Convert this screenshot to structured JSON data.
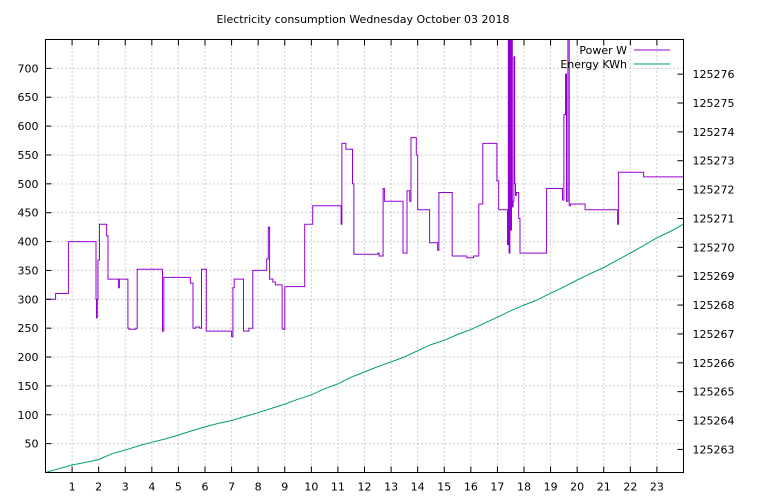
{
  "chart_data": {
    "type": "line",
    "title": "Electricity consumption Wednesday October 03 2018",
    "xlabel": "",
    "ylabel": "",
    "y2label": "",
    "xlim": [
      0,
      24
    ],
    "ylim": [
      0,
      750
    ],
    "y2lim": [
      125262.2,
      125277.2
    ],
    "x_ticks": [
      1,
      2,
      3,
      4,
      5,
      6,
      7,
      8,
      9,
      10,
      11,
      12,
      13,
      14,
      15,
      16,
      17,
      18,
      19,
      20,
      21,
      22,
      23
    ],
    "y_ticks": [
      50,
      100,
      150,
      200,
      250,
      300,
      350,
      400,
      450,
      500,
      550,
      600,
      650,
      700
    ],
    "y2_ticks": [
      125263,
      125264,
      125265,
      125266,
      125267,
      125268,
      125269,
      125270,
      125271,
      125272,
      125273,
      125274,
      125275,
      125276
    ],
    "grid": true,
    "legend": "top-right",
    "series": [
      {
        "name": "Power W",
        "axis": "left",
        "color": "#9400d3",
        "step": true,
        "x": [
          0,
          0.38,
          0.86,
          1.9,
          1.92,
          1.95,
          1.97,
          2.03,
          2.3,
          2.35,
          2.75,
          2.78,
          3.1,
          3.15,
          3.4,
          3.45,
          3.5,
          4.4,
          4.45,
          5.3,
          5.45,
          5.5,
          5.55,
          5.65,
          5.8,
          5.87,
          5.95,
          6.05,
          6.97,
          7.0,
          7.05,
          7.1,
          7.35,
          7.45,
          7.6,
          7.65,
          7.8,
          8.3,
          8.32,
          8.38,
          8.43,
          8.55,
          8.65,
          8.9,
          8.93,
          9.0,
          9.1,
          9.75,
          10.05,
          11.1,
          11.12,
          11.15,
          11.3,
          11.55,
          11.6,
          12.5,
          12.55,
          12.7,
          12.75,
          13.45,
          13.5,
          13.55,
          13.6,
          13.7,
          13.75,
          13.85,
          13.95,
          14.0,
          14.4,
          14.45,
          14.72,
          14.75,
          14.8,
          14.85,
          15.3,
          15.35,
          15.85,
          16.1,
          16.3,
          16.45,
          16.98,
          17.05,
          17.35,
          17.38,
          17.41,
          17.44,
          17.47,
          17.5,
          17.53,
          17.56,
          17.59,
          17.62,
          17.65,
          17.68,
          17.71,
          17.74,
          17.8,
          17.85,
          18.2,
          18.85,
          19.45,
          19.5,
          19.56,
          19.6,
          19.65,
          19.7,
          19.75,
          19.8,
          20.3,
          21.5,
          21.52,
          21.55,
          22.4,
          22.5,
          23.5,
          24
        ],
        "values": [
          300,
          310,
          400,
          300,
          268,
          300,
          368,
          430,
          410,
          335,
          320,
          335,
          250,
          248,
          250,
          352,
          352,
          245,
          338,
          338,
          328,
          328,
          250,
          252,
          250,
          352,
          352,
          245,
          245,
          235,
          320,
          335,
          335,
          245,
          245,
          250,
          350,
          350,
          370,
          425,
          335,
          330,
          325,
          250,
          248,
          322,
          322,
          430,
          462,
          462,
          430,
          570,
          560,
          500,
          378,
          380,
          375,
          492,
          470,
          380,
          380,
          380,
          488,
          470,
          580,
          580,
          550,
          455,
          455,
          398,
          398,
          385,
          485,
          485,
          375,
          375,
          372,
          375,
          465,
          570,
          505,
          455,
          455,
          395,
          750,
          380,
          750,
          420,
          750,
          460,
          470,
          720,
          500,
          480,
          485,
          485,
          440,
          380,
          380,
          492,
          472,
          620,
          690,
          470,
          750,
          462,
          465,
          465,
          455,
          455,
          430,
          520,
          520,
          512,
          512,
          480
        ]
      },
      {
        "name": "Energy KWh",
        "axis": "right",
        "color": "#009e73",
        "step": false,
        "x": [
          0,
          0.5,
          1,
          1.5,
          2,
          2.5,
          3,
          3.5,
          4,
          4.5,
          5,
          5.5,
          6,
          6.5,
          7,
          7.5,
          8,
          8.5,
          9,
          9.5,
          10,
          10.5,
          11,
          11.5,
          12,
          12.5,
          13,
          13.5,
          14,
          14.5,
          15,
          15.5,
          16,
          16.5,
          17,
          17.5,
          18,
          18.5,
          19,
          19.5,
          20,
          20.5,
          21,
          21.5,
          22,
          22.5,
          23,
          23.5,
          24
        ],
        "values": [
          125262.2,
          125262.33,
          125262.46,
          125262.55,
          125262.65,
          125262.85,
          125262.98,
          125263.12,
          125263.25,
          125263.36,
          125263.5,
          125263.64,
          125263.78,
          125263.9,
          125264.0,
          125264.14,
          125264.27,
          125264.42,
          125264.57,
          125264.74,
          125264.89,
          125265.1,
          125265.27,
          125265.5,
          125265.68,
          125265.87,
          125266.03,
          125266.2,
          125266.42,
          125266.63,
          125266.78,
          125266.98,
          125267.15,
          125267.37,
          125267.58,
          125267.8,
          125268.0,
          125268.18,
          125268.41,
          125268.63,
          125268.87,
          125269.09,
          125269.3,
          125269.55,
          125269.8,
          125270.06,
          125270.33,
          125270.55,
          125270.8
        ]
      }
    ]
  }
}
